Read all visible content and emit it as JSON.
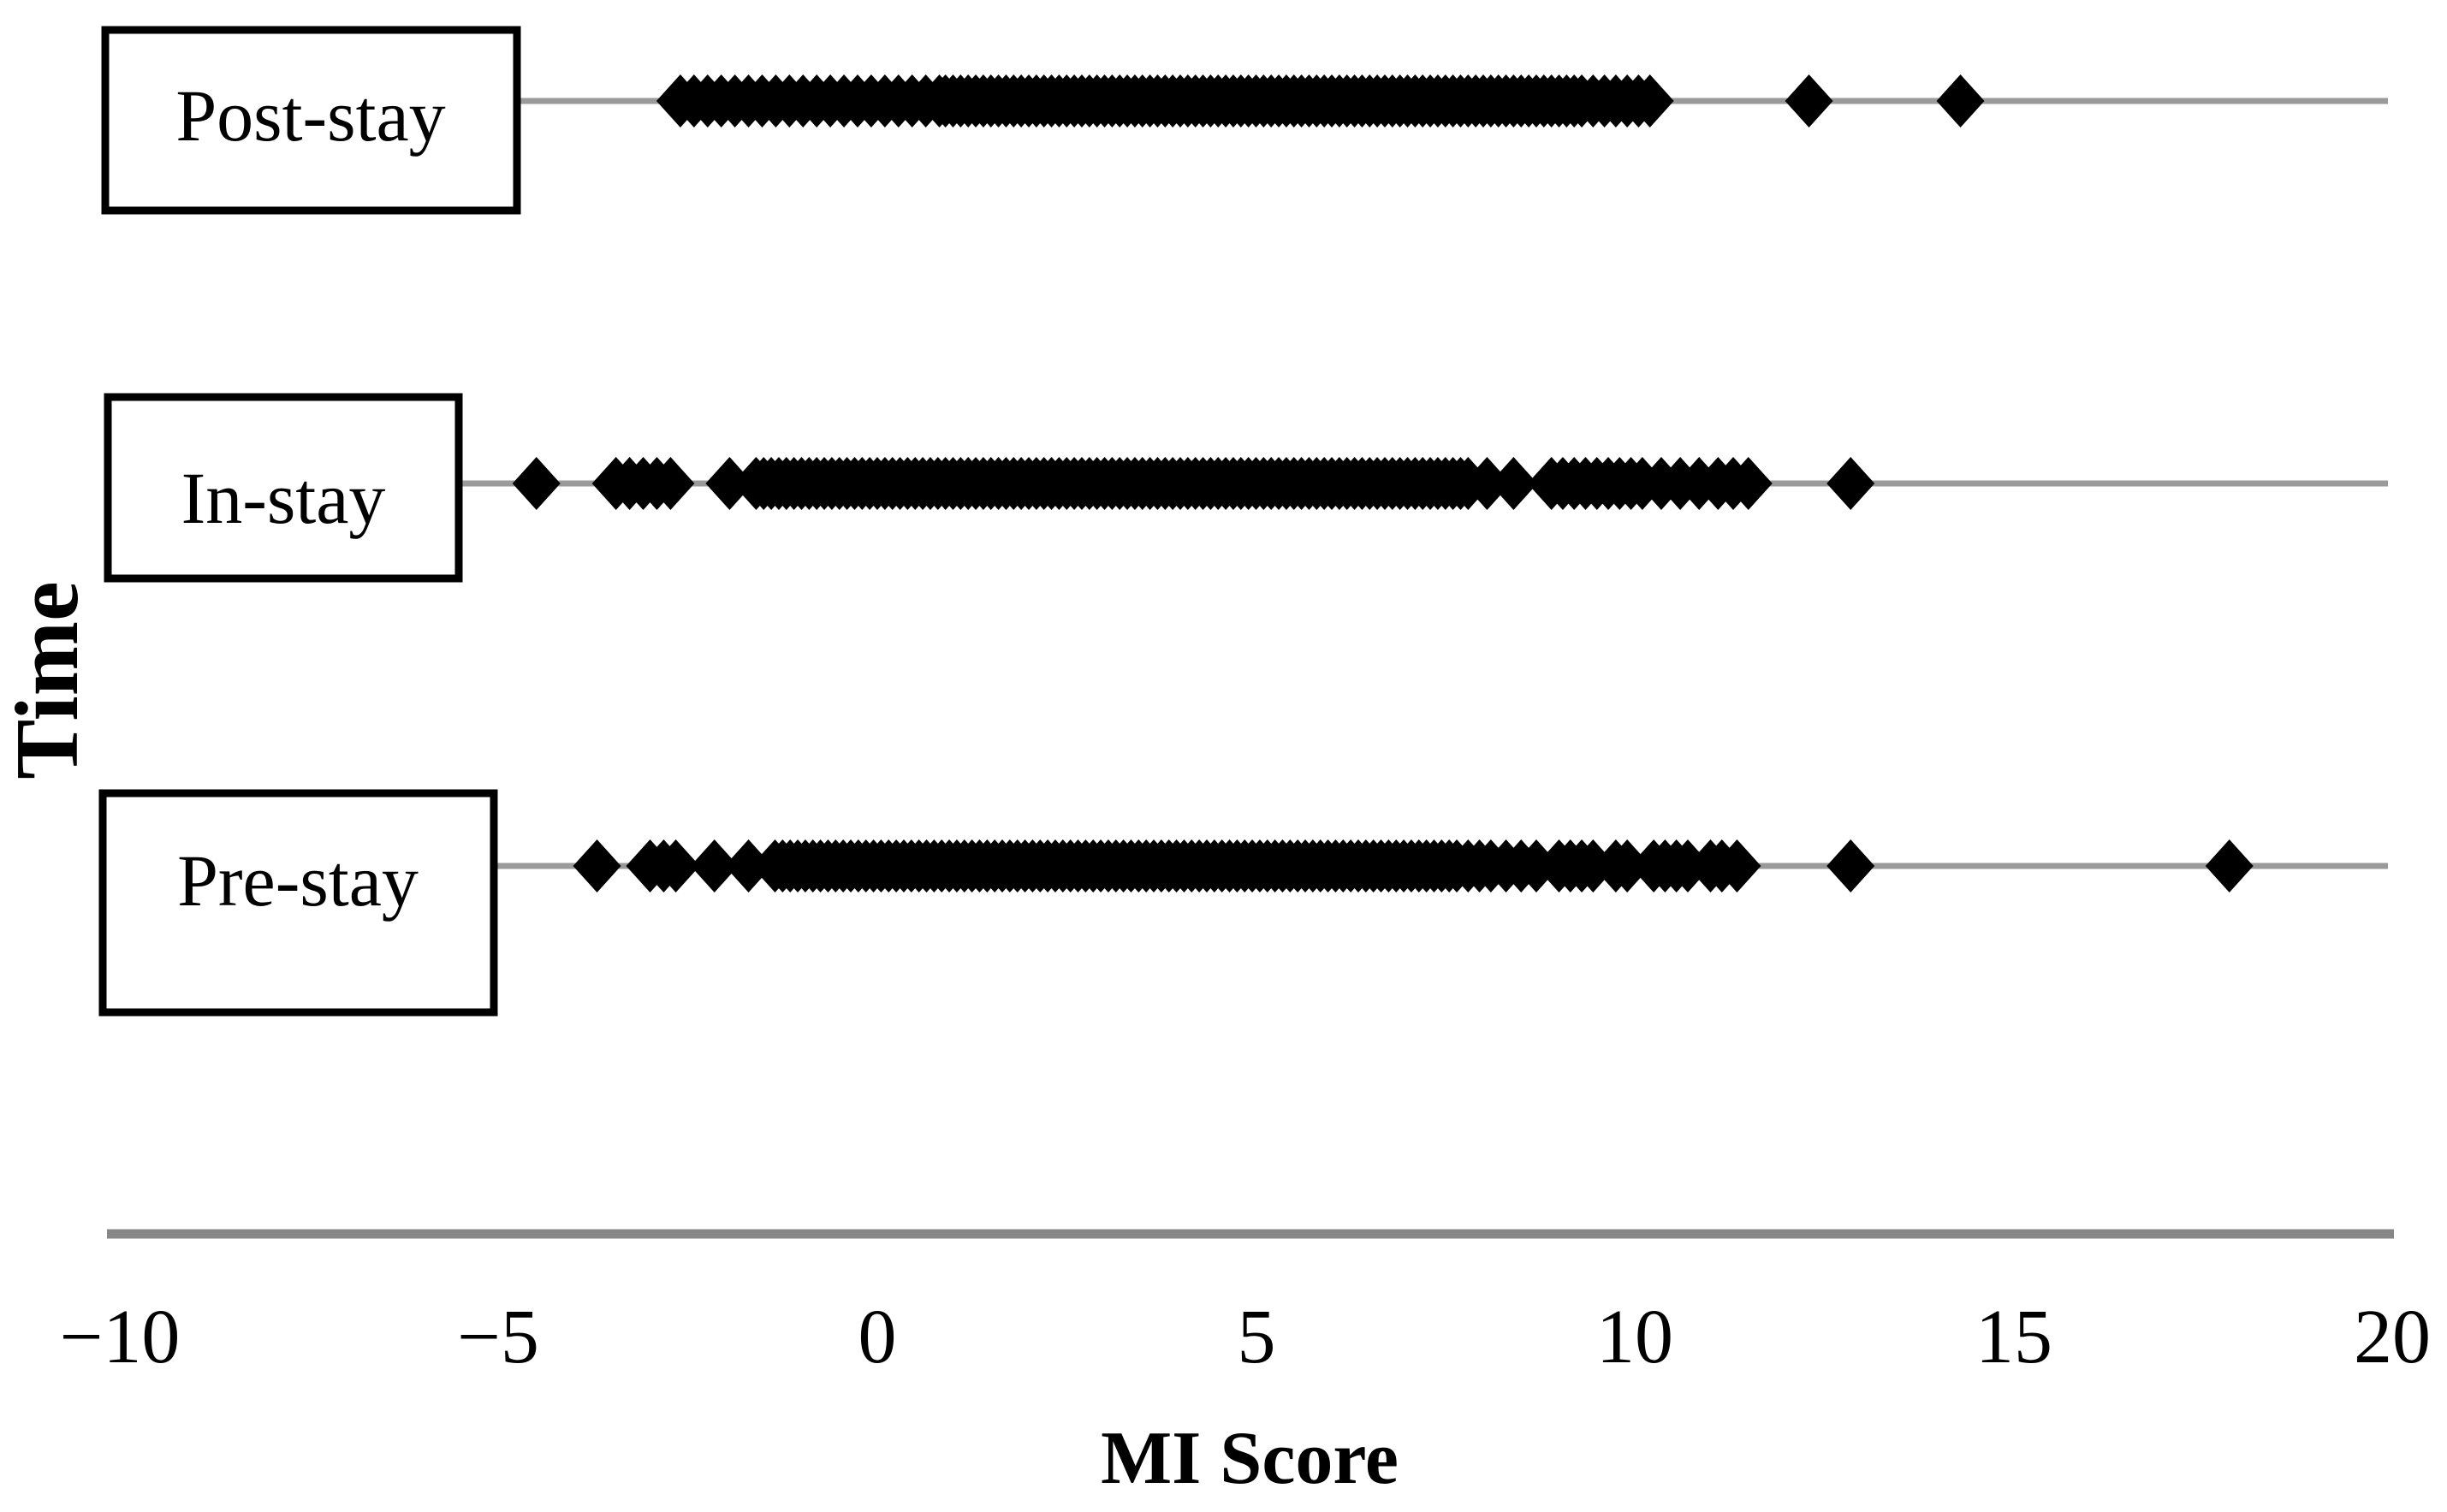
{
  "figure": {
    "background": "#ffffff",
    "marker_color": "#000000",
    "row_line_color": "#9a9a9a",
    "axis_line_color": "#878787"
  },
  "chart_data": {
    "type": "scatter",
    "subtype": "one-dimensional-strip-plot",
    "marker": "diamond",
    "marker_color": "#000000",
    "title": "",
    "xlabel": "MI Score",
    "ylabel": "Time",
    "xlim": [
      -10,
      20
    ],
    "grid": false,
    "legend": false,
    "categories": [
      "Post-stay",
      "In-stay",
      "Pre-stay"
    ],
    "x_ticks": [
      {
        "value": -10,
        "label": "−10"
      },
      {
        "value": -5,
        "label": "−5"
      },
      {
        "value": 0,
        "label": "0"
      },
      {
        "value": 5,
        "label": "5"
      },
      {
        "value": 10,
        "label": "10"
      },
      {
        "value": 15,
        "label": "15"
      },
      {
        "value": 20,
        "label": "20"
      }
    ],
    "series": [
      {
        "name": "Post-stay",
        "approx_range": [
          -2.6,
          14.3
        ],
        "values": [
          -2.6,
          -2.42,
          -2.24,
          -2.06,
          -1.88,
          -1.7,
          -1.52,
          -1.34,
          -1.16,
          -0.98,
          -0.8,
          -0.62,
          -0.44,
          -0.26,
          -0.08,
          0.1,
          0.28,
          0.46,
          0.64,
          0.82,
          0.9,
          1,
          1.1,
          1.2,
          1.3,
          1.4,
          1.5,
          1.6,
          1.7,
          1.8,
          1.9,
          2,
          2.1,
          2.2,
          2.3,
          2.4,
          2.5,
          2.6,
          2.7,
          2.8,
          2.9,
          3,
          3.1,
          3.2,
          3.3,
          3.4,
          3.5,
          3.6,
          3.7,
          3.8,
          3.9,
          4,
          4.1,
          4.2,
          4.3,
          4.4,
          4.5,
          4.6,
          4.7,
          4.8,
          4.9,
          5,
          5.1,
          5.2,
          5.3,
          5.4,
          5.5,
          5.6,
          5.7,
          5.8,
          5.9,
          6,
          6.1,
          6.2,
          6.3,
          6.4,
          6.5,
          6.6,
          6.7,
          6.8,
          6.9,
          7,
          7.1,
          7.2,
          7.3,
          7.4,
          7.5,
          7.6,
          7.7,
          7.8,
          7.9,
          8,
          8.1,
          8.2,
          8.3,
          8.4,
          8.5,
          8.6,
          8.7,
          8.8,
          8.9,
          9,
          9.1,
          9.2,
          9.3,
          9.45,
          9.6,
          9.75,
          9.9,
          10.05,
          10.2,
          12.3,
          14.3
        ]
      },
      {
        "name": "In-stay",
        "approx_range": [
          -4.5,
          12.85
        ],
        "values": [
          -4.5,
          -3.45,
          -3.27,
          -3.09,
          -2.91,
          -2.73,
          -1.95,
          -1.6,
          -1.5,
          -1.4,
          -1.3,
          -1.2,
          -1.1,
          -1,
          -0.9,
          -0.8,
          -0.7,
          -0.6,
          -0.5,
          -0.4,
          -0.3,
          -0.2,
          -0.1,
          0,
          0.1,
          0.2,
          0.3,
          0.4,
          0.5,
          0.6,
          0.7,
          0.8,
          0.9,
          1,
          1.1,
          1.2,
          1.3,
          1.4,
          1.5,
          1.6,
          1.7,
          1.8,
          1.9,
          2,
          2.1,
          2.2,
          2.3,
          2.4,
          2.5,
          2.6,
          2.7,
          2.8,
          2.9,
          3,
          3.1,
          3.2,
          3.3,
          3.4,
          3.5,
          3.6,
          3.7,
          3.8,
          3.9,
          4,
          4.1,
          4.2,
          4.3,
          4.4,
          4.5,
          4.6,
          4.7,
          4.8,
          4.9,
          5,
          5.1,
          5.2,
          5.3,
          5.4,
          5.5,
          5.6,
          5.7,
          5.8,
          5.9,
          6,
          6.1,
          6.2,
          6.3,
          6.4,
          6.5,
          6.6,
          6.7,
          6.8,
          6.9,
          7,
          7.1,
          7.2,
          7.3,
          7.4,
          7.5,
          7.6,
          7.7,
          7.8,
          8.05,
          8.4,
          8.9,
          9.05,
          9.2,
          9.35,
          9.5,
          9.65,
          9.8,
          9.95,
          10.1,
          10.35,
          10.6,
          10.85,
          11.1,
          11.3,
          11.5,
          12.85
        ]
      },
      {
        "name": "Pre-stay",
        "approx_range": [
          -3.7,
          17.85
        ],
        "values": [
          -3.7,
          -3,
          -2.82,
          -2.66,
          -2.15,
          -1.7,
          -1.35,
          -1.25,
          -1.15,
          -1.05,
          -0.95,
          -0.85,
          -0.75,
          -0.65,
          -0.55,
          -0.45,
          -0.35,
          -0.25,
          -0.15,
          -0.05,
          0.05,
          0.15,
          0.25,
          0.35,
          0.45,
          0.55,
          0.65,
          0.75,
          0.85,
          0.95,
          1.05,
          1.15,
          1.25,
          1.35,
          1.45,
          1.55,
          1.65,
          1.75,
          1.85,
          1.95,
          2.05,
          2.15,
          2.25,
          2.35,
          2.45,
          2.55,
          2.65,
          2.75,
          2.85,
          2.95,
          3.05,
          3.15,
          3.25,
          3.35,
          3.45,
          3.55,
          3.65,
          3.75,
          3.85,
          3.95,
          4.05,
          4.15,
          4.25,
          4.35,
          4.45,
          4.55,
          4.65,
          4.75,
          4.85,
          4.95,
          5.05,
          5.15,
          5.25,
          5.35,
          5.45,
          5.55,
          5.65,
          5.75,
          5.85,
          5.95,
          6.05,
          6.15,
          6.25,
          6.35,
          6.45,
          6.55,
          6.65,
          6.75,
          6.85,
          6.95,
          7.05,
          7.15,
          7.25,
          7.35,
          7.45,
          7.55,
          7.65,
          7.8,
          7.95,
          8.1,
          8.3,
          8.5,
          8.7,
          9,
          9.15,
          9.3,
          9.45,
          9.75,
          9.9,
          10.25,
          10.4,
          10.55,
          10.7,
          11,
          11.15,
          11.35,
          12.85,
          17.85
        ]
      }
    ]
  }
}
